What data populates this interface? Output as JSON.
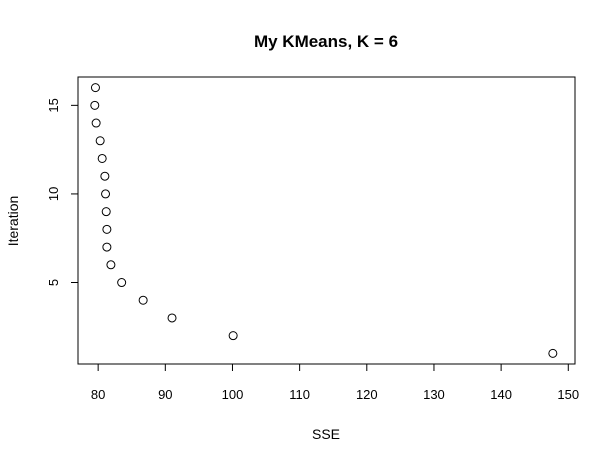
{
  "chart_data": {
    "type": "scatter",
    "title": "My KMeans, K = 6",
    "xlabel": "SSE",
    "ylabel": "Iteration",
    "xlim": [
      77,
      151
    ],
    "ylim": [
      0.4,
      16.6
    ],
    "x_ticks": [
      80,
      90,
      100,
      110,
      120,
      130,
      140,
      150
    ],
    "y_ticks": [
      5,
      10,
      15
    ],
    "grid": false,
    "series": [
      {
        "points": [
          {
            "x": 147.7,
            "y": 1
          },
          {
            "x": 100.1,
            "y": 2
          },
          {
            "x": 91.0,
            "y": 3
          },
          {
            "x": 86.7,
            "y": 4
          },
          {
            "x": 83.5,
            "y": 5
          },
          {
            "x": 81.9,
            "y": 6
          },
          {
            "x": 81.3,
            "y": 7
          },
          {
            "x": 81.3,
            "y": 8
          },
          {
            "x": 81.2,
            "y": 9
          },
          {
            "x": 81.1,
            "y": 10
          },
          {
            "x": 81.0,
            "y": 11
          },
          {
            "x": 80.6,
            "y": 12
          },
          {
            "x": 80.3,
            "y": 13
          },
          {
            "x": 79.7,
            "y": 14
          },
          {
            "x": 79.5,
            "y": 15
          },
          {
            "x": 79.6,
            "y": 16
          }
        ]
      }
    ]
  }
}
